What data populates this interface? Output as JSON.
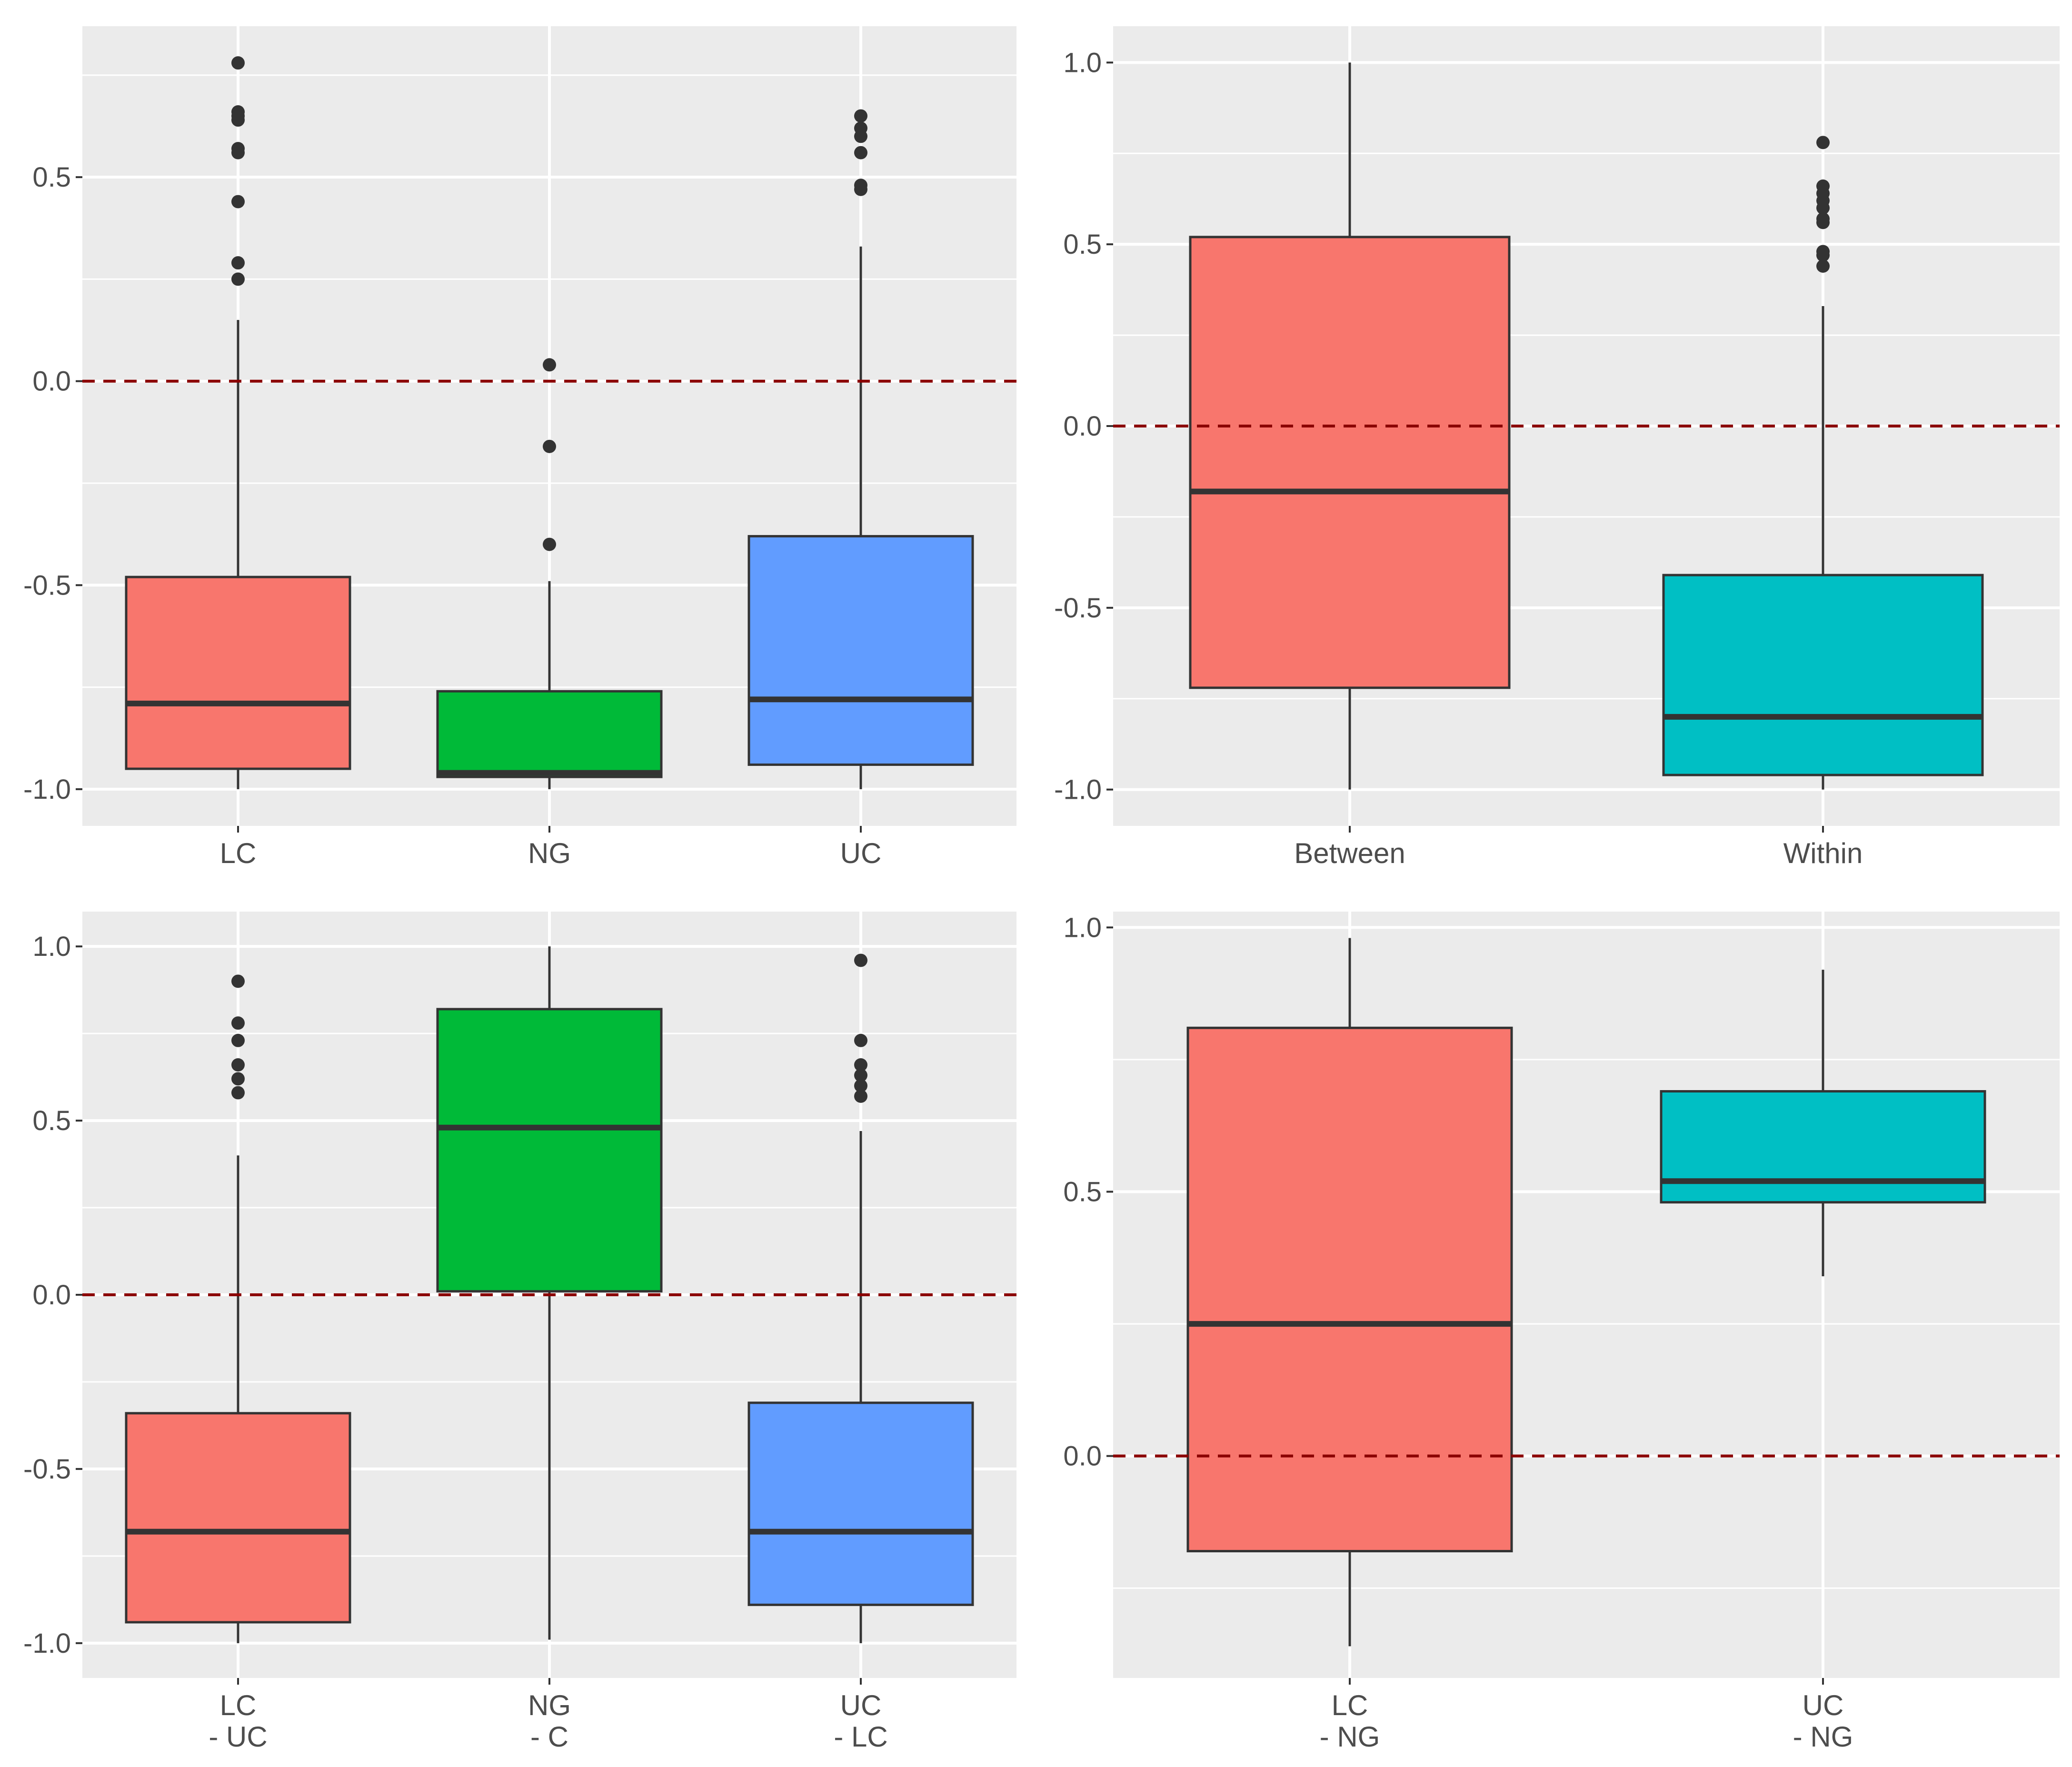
{
  "chart_data": [
    {
      "type": "boxplot",
      "panel": "top-left",
      "categories": [
        "LC",
        "NG",
        "UC"
      ],
      "fill_colors": [
        "#F8766D",
        "#00BA38",
        "#619CFF"
      ],
      "ylim": [
        -1.09,
        0.87
      ],
      "y_ticks": [
        -1.0,
        -0.5,
        0.0,
        0.5
      ],
      "y_tick_labels": [
        "-1.0",
        "-0.5",
        "0.0",
        "0.5"
      ],
      "reference_line": {
        "y": 0.0,
        "style": "dashed",
        "color": "#8B0000"
      },
      "boxes": [
        {
          "category": "LC",
          "whisker_low": -1.0,
          "q1": -0.95,
          "median": -0.79,
          "q3": -0.48,
          "whisker_high": 0.15,
          "outliers": [
            0.78,
            0.66,
            0.65,
            0.64,
            0.57,
            0.56,
            0.44,
            0.29,
            0.25
          ]
        },
        {
          "category": "NG",
          "whisker_low": -1.0,
          "q1": -0.97,
          "median": -0.96,
          "q3": -0.76,
          "whisker_high": -0.49,
          "outliers": [
            0.04,
            -0.16,
            -0.4
          ]
        },
        {
          "category": "UC",
          "whisker_low": -1.0,
          "q1": -0.94,
          "median": -0.78,
          "q3": -0.38,
          "whisker_high": 0.33,
          "outliers": [
            0.65,
            0.62,
            0.6,
            0.56,
            0.48,
            0.47
          ]
        }
      ]
    },
    {
      "type": "boxplot",
      "panel": "top-right",
      "categories": [
        "Between",
        "Within"
      ],
      "fill_colors": [
        "#F8766D",
        "#00BFC4"
      ],
      "ylim": [
        -1.1,
        1.1
      ],
      "y_ticks": [
        -1.0,
        -0.5,
        0.0,
        0.5,
        1.0
      ],
      "y_tick_labels": [
        "-1.0",
        "-0.5",
        "0.0",
        "0.5",
        "1.0"
      ],
      "reference_line": {
        "y": 0.0,
        "style": "dashed",
        "color": "#8B0000"
      },
      "boxes": [
        {
          "category": "Between",
          "whisker_low": -1.0,
          "q1": -0.72,
          "median": -0.18,
          "q3": 0.52,
          "whisker_high": 1.0,
          "outliers": []
        },
        {
          "category": "Within",
          "whisker_low": -1.0,
          "q1": -0.96,
          "median": -0.8,
          "q3": -0.41,
          "whisker_high": 0.33,
          "outliers": [
            0.78,
            0.66,
            0.64,
            0.62,
            0.6,
            0.57,
            0.56,
            0.48,
            0.47,
            0.44
          ]
        }
      ]
    },
    {
      "type": "boxplot",
      "panel": "bottom-left",
      "categories": [
        "LC\n- UC",
        "NG\n- C",
        "UC\n- LC"
      ],
      "fill_colors": [
        "#F8766D",
        "#00BA38",
        "#619CFF"
      ],
      "ylim": [
        -1.1,
        1.1
      ],
      "y_ticks": [
        -1.0,
        -0.5,
        0.0,
        0.5,
        1.0
      ],
      "y_tick_labels": [
        "-1.0",
        "-0.5",
        "0.0",
        "0.5",
        "1.0"
      ],
      "reference_line": {
        "y": 0.0,
        "style": "dashed",
        "color": "#8B0000"
      },
      "boxes": [
        {
          "category": "LC\n- UC",
          "whisker_low": -1.0,
          "q1": -0.94,
          "median": -0.68,
          "q3": -0.34,
          "whisker_high": 0.4,
          "outliers": [
            0.9,
            0.78,
            0.73,
            0.66,
            0.62,
            0.58
          ]
        },
        {
          "category": "NG\n- C",
          "whisker_low": -0.99,
          "q1": 0.01,
          "median": 0.48,
          "q3": 0.82,
          "whisker_high": 1.0,
          "outliers": []
        },
        {
          "category": "UC\n- LC",
          "whisker_low": -1.0,
          "q1": -0.89,
          "median": -0.68,
          "q3": -0.31,
          "whisker_high": 0.47,
          "outliers": [
            0.96,
            0.73,
            0.66,
            0.63,
            0.6,
            0.57
          ]
        }
      ]
    },
    {
      "type": "boxplot",
      "panel": "bottom-right",
      "categories": [
        "LC\n- NG",
        "UC\n- NG"
      ],
      "fill_colors": [
        "#F8766D",
        "#00BFC4"
      ],
      "ylim": [
        -0.42,
        1.03
      ],
      "y_ticks": [
        0.0,
        0.5,
        1.0
      ],
      "y_tick_labels": [
        "0.0",
        "0.5",
        "1.0"
      ],
      "reference_line": {
        "y": 0.0,
        "style": "dashed",
        "color": "#8B0000"
      },
      "boxes": [
        {
          "category": "LC\n- NG",
          "whisker_low": -0.36,
          "q1": -0.18,
          "median": 0.25,
          "q3": 0.81,
          "whisker_high": 0.98,
          "outliers": []
        },
        {
          "category": "UC\n- NG",
          "whisker_low": 0.34,
          "q1": 0.48,
          "median": 0.52,
          "q3": 0.69,
          "whisker_high": 0.92,
          "outliers": []
        }
      ]
    }
  ]
}
